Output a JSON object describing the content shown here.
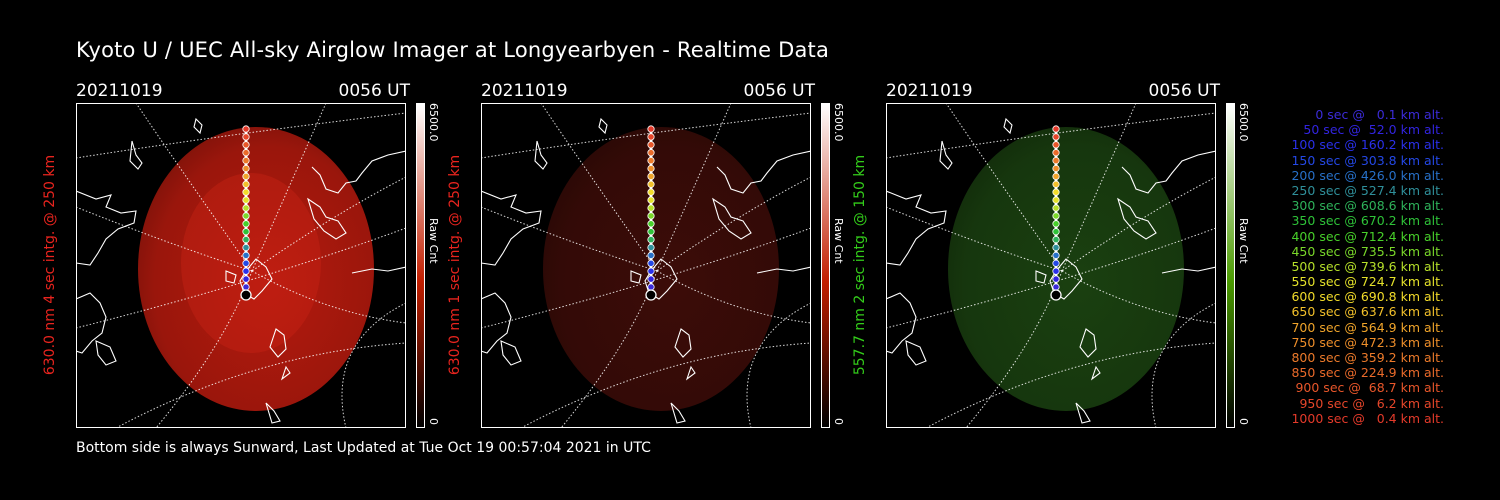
{
  "title": "Kyoto U / UEC All-sky Airglow Imager at Longyearbyen - Realtime Data",
  "footer": "Bottom side is always Sunward, Last Updated at Tue Oct 19 00:57:04 2021 in UTC",
  "panels": [
    {
      "date": "20211019",
      "time": "0056 UT",
      "side_label": "630.0 nm 4 sec intg. @ 250 km",
      "side_color": "#e8241e",
      "colorbar_max": "6500.0",
      "colorbar_label": "Raw Cnt",
      "colorbar_zero": "0",
      "colorbar_color": "#c21e00",
      "sky_color": "#b51a0e",
      "sky_intensity": 1.0
    },
    {
      "date": "20211019",
      "time": "0056 UT",
      "side_label": "630.0 nm 1 sec intg. @ 250 km",
      "side_color": "#e8241e",
      "colorbar_max": "6500.0",
      "colorbar_label": "Raw Cnt",
      "colorbar_zero": "0",
      "colorbar_color": "#c21e00",
      "sky_color": "#3c0c08",
      "sky_intensity": 0.35
    },
    {
      "date": "20211019",
      "time": "0056 UT",
      "side_label": "557.7 nm 2 sec intg. @ 150 km",
      "side_color": "#33cc1a",
      "colorbar_max": "6500.0",
      "colorbar_label": "Raw Cnt",
      "colorbar_zero": "0",
      "colorbar_color": "#4a9a00",
      "sky_color": "#1a4010",
      "sky_intensity": 0.45
    }
  ],
  "legend": [
    {
      "text": "0 sec @   0.1 km alt.",
      "color": "#3b2bd8"
    },
    {
      "text": "50 sec @  52.0 km alt.",
      "color": "#3224e0"
    },
    {
      "text": "100 sec @ 160.2 km alt.",
      "color": "#2a30ea"
    },
    {
      "text": "150 sec @ 303.8 km alt.",
      "color": "#2448e6"
    },
    {
      "text": "200 sec @ 426.0 km alt.",
      "color": "#2770c8"
    },
    {
      "text": "250 sec @ 527.4 km alt.",
      "color": "#2f8f9a"
    },
    {
      "text": "300 sec @ 608.6 km alt.",
      "color": "#2eb25a"
    },
    {
      "text": "350 sec @ 670.2 km alt.",
      "color": "#2ec238"
    },
    {
      "text": "400 sec @ 712.4 km alt.",
      "color": "#48d02a"
    },
    {
      "text": "450 sec @ 735.5 km alt.",
      "color": "#7ad82a"
    },
    {
      "text": "500 sec @ 739.6 km alt.",
      "color": "#b6e02a"
    },
    {
      "text": "550 sec @ 724.7 km alt.",
      "color": "#e4e22a"
    },
    {
      "text": "600 sec @ 690.8 km alt.",
      "color": "#f2dc2a"
    },
    {
      "text": "650 sec @ 637.6 km alt.",
      "color": "#f2c02a"
    },
    {
      "text": "700 sec @ 564.9 km alt.",
      "color": "#f0a42a"
    },
    {
      "text": "750 sec @ 472.3 km alt.",
      "color": "#ee8e2a"
    },
    {
      "text": "800 sec @ 359.2 km alt.",
      "color": "#ec7a2a"
    },
    {
      "text": "850 sec @ 224.9 km alt.",
      "color": "#ea6a2a"
    },
    {
      "text": "900 sec @  68.7 km alt.",
      "color": "#e8562a"
    },
    {
      "text": "950 sec @   6.2 km alt.",
      "color": "#e6462a"
    },
    {
      "text": "1000 sec @   0.4 km alt.",
      "color": "#e43a2a"
    }
  ]
}
